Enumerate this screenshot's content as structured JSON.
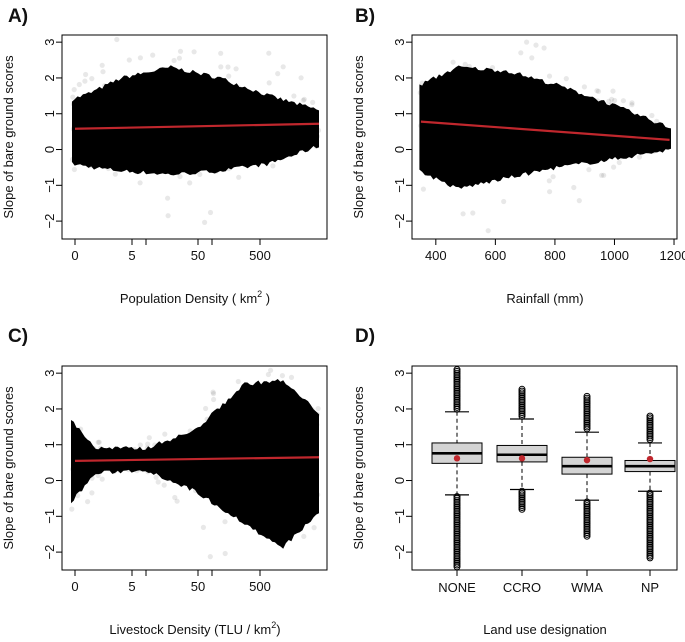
{
  "chart_data": [
    {
      "type": "scatter",
      "panel_label": "A)",
      "xlabel": "Population Density",
      "xlabel_unit": "km",
      "xlabel_unit_sup": "2",
      "ylabel": "Slope of bare ground scores",
      "ylim": [
        -2.5,
        3.2
      ],
      "y_ticks": [
        -2,
        -1,
        0,
        1,
        2,
        3
      ],
      "x_tick_labels": [
        "0",
        "5",
        "50",
        "500"
      ],
      "x_minor_ticks_count": 2,
      "fit_line": {
        "color": "#c0272d",
        "y_start": 0.58,
        "y_end": 0.72
      },
      "cloud_profile": [
        {
          "t": 0.0,
          "lo": -0.4,
          "hi": 1.4
        },
        {
          "t": 0.08,
          "lo": -0.5,
          "hi": 1.6
        },
        {
          "t": 0.2,
          "lo": -0.6,
          "hi": 2.0
        },
        {
          "t": 0.4,
          "lo": -0.7,
          "hi": 2.3
        },
        {
          "t": 0.6,
          "lo": -0.6,
          "hi": 2.0
        },
        {
          "t": 0.8,
          "lo": -0.4,
          "hi": 1.5
        },
        {
          "t": 1.0,
          "lo": 0.1,
          "hi": 1.1
        }
      ]
    },
    {
      "type": "scatter",
      "panel_label": "B)",
      "xlabel": "Rainfall (mm)",
      "ylabel": "Slope of bare ground scores",
      "ylim": [
        -2.5,
        3.2
      ],
      "xlim": [
        320,
        1210
      ],
      "y_ticks": [
        -2,
        -1,
        0,
        1,
        2,
        3
      ],
      "x_ticks": [
        400,
        600,
        800,
        1000,
        1200
      ],
      "fit_line": {
        "color": "#c0272d",
        "x_start": 350,
        "x_end": 1185,
        "y_start": 0.78,
        "y_end": 0.27
      },
      "cloud_profile": [
        {
          "t": 0.0,
          "lo": -0.6,
          "hi": 1.8
        },
        {
          "t": 0.15,
          "lo": -1.1,
          "hi": 2.3
        },
        {
          "t": 0.35,
          "lo": -0.8,
          "hi": 2.2
        },
        {
          "t": 0.55,
          "lo": -0.5,
          "hi": 1.8
        },
        {
          "t": 0.75,
          "lo": -0.3,
          "hi": 1.3
        },
        {
          "t": 1.0,
          "lo": 0.0,
          "hi": 0.6
        }
      ]
    },
    {
      "type": "scatter",
      "panel_label": "C)",
      "xlabel": "Livestock Density (TLU / km",
      "xlabel_unit_sup": "2",
      "xlabel_close": ")",
      "ylabel": "Slope of bare ground scores",
      "ylim": [
        -2.5,
        3.2
      ],
      "y_ticks": [
        -2,
        -1,
        0,
        1,
        2,
        3
      ],
      "x_tick_labels": [
        "0",
        "5",
        "50",
        "500"
      ],
      "x_minor_ticks_count": 2,
      "fit_line": {
        "color": "#c0272d",
        "y_start": 0.55,
        "y_end": 0.65
      },
      "cloud_profile": [
        {
          "t": 0.0,
          "lo": -0.6,
          "hi": 1.7
        },
        {
          "t": 0.1,
          "lo": 0.2,
          "hi": 0.9
        },
        {
          "t": 0.3,
          "lo": 0.3,
          "hi": 0.9
        },
        {
          "t": 0.5,
          "lo": -0.3,
          "hi": 1.4
        },
        {
          "t": 0.7,
          "lo": -1.2,
          "hi": 2.7
        },
        {
          "t": 0.85,
          "lo": -1.9,
          "hi": 2.8
        },
        {
          "t": 1.0,
          "lo": -0.9,
          "hi": 1.9
        }
      ]
    },
    {
      "type": "box",
      "panel_label": "D)",
      "xlabel": "Land use designation",
      "ylabel": "Slope of bare ground scores",
      "ylim": [
        -2.5,
        3.2
      ],
      "y_ticks": [
        -2,
        -1,
        0,
        1,
        2,
        3
      ],
      "categories": [
        "NONE",
        "CCRO",
        "WMA",
        "NP"
      ],
      "boxes": [
        {
          "q1": 0.48,
          "median": 0.76,
          "q3": 1.05,
          "whisker_low": -0.4,
          "whisker_high": 1.92,
          "mean": 0.62,
          "outlier_range_high": [
            1.95,
            3.1
          ],
          "outlier_range_low": [
            -2.45,
            -0.45
          ]
        },
        {
          "q1": 0.52,
          "median": 0.72,
          "q3": 0.98,
          "whisker_low": -0.25,
          "whisker_high": 1.72,
          "mean": 0.62,
          "outlier_range_high": [
            1.75,
            2.55
          ],
          "outlier_range_low": [
            -0.85,
            -0.3
          ]
        },
        {
          "q1": 0.18,
          "median": 0.4,
          "q3": 0.65,
          "whisker_low": -0.55,
          "whisker_high": 1.35,
          "mean": 0.57,
          "outlier_range_high": [
            1.4,
            2.35
          ],
          "outlier_range_low": [
            -1.6,
            -0.6
          ]
        },
        {
          "q1": 0.25,
          "median": 0.4,
          "q3": 0.56,
          "whisker_low": -0.3,
          "whisker_high": 1.05,
          "mean": 0.6,
          "outlier_range_high": [
            1.1,
            1.8
          ],
          "outlier_range_low": [
            -2.2,
            -0.35
          ]
        }
      ],
      "box_fill": "#d4d4d4",
      "mean_color": "#c0272d"
    }
  ]
}
